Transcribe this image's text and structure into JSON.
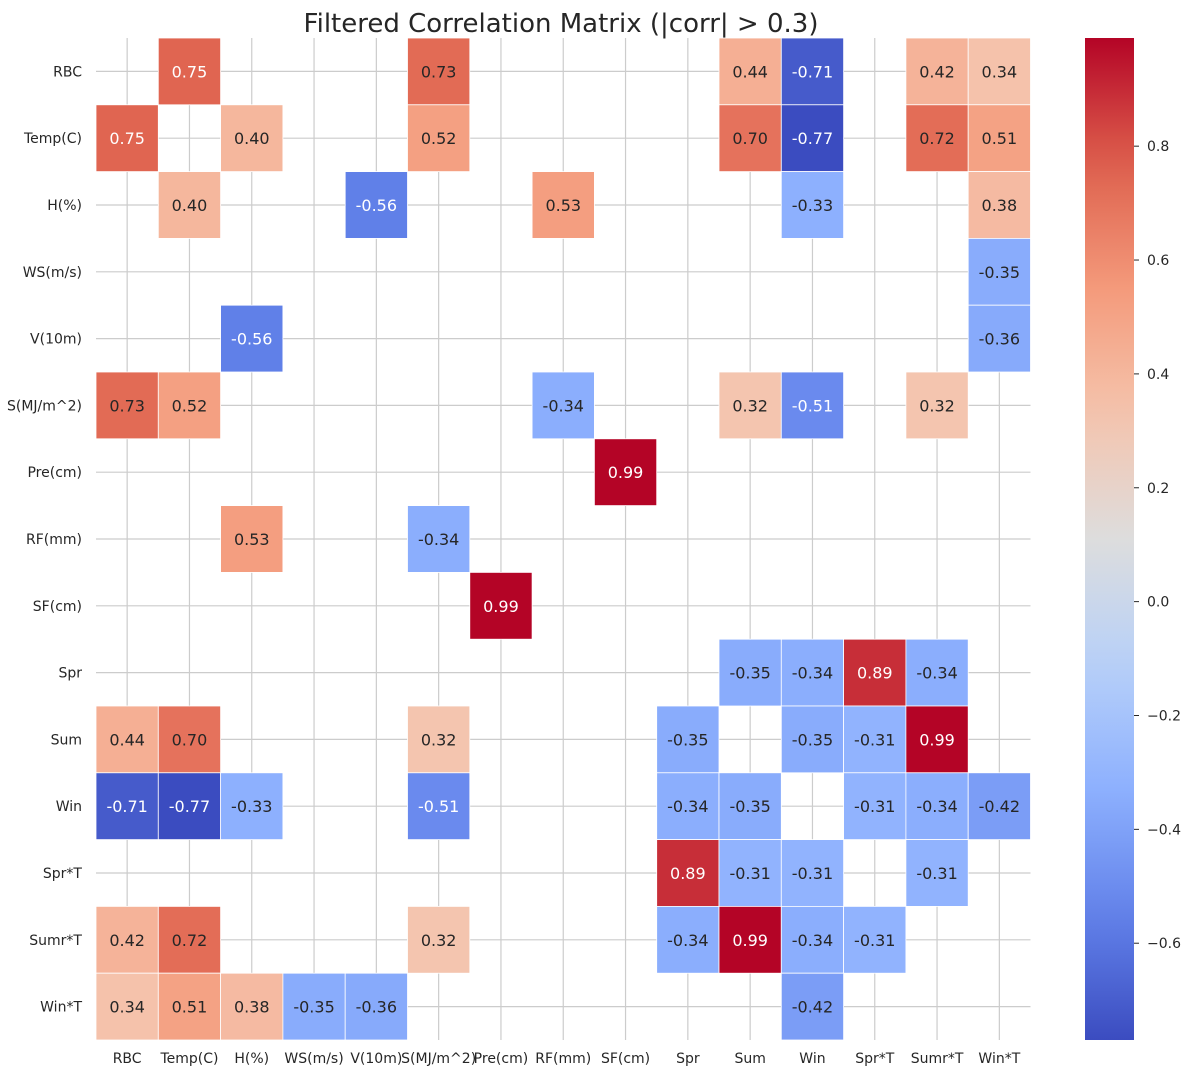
{
  "chart_data": {
    "type": "heatmap",
    "title": "Filtered Correlation Matrix (|corr| > 0.3)",
    "xlabel": "",
    "ylabel": "",
    "rows": [
      "RBC",
      "Temp(C)",
      "H(%)",
      "WS(m/s)",
      "V(10m)",
      "S(MJ/m^2)",
      "Pre(cm)",
      "RF(mm)",
      "SF(cm)",
      "Spr",
      "Sum",
      "Win",
      "Spr*T",
      "Sumr*T",
      "Win*T"
    ],
    "columns": [
      "RBC",
      "Temp(C)",
      "H(%)",
      "WS(m/s)",
      "V(10m)",
      "S(MJ/m^2)",
      "Pre(cm)",
      "RF(mm)",
      "SF(cm)",
      "Spr",
      "Sum",
      "Win",
      "Spr*T",
      "Sumr*T",
      "Win*T"
    ],
    "values": [
      [
        null,
        0.75,
        null,
        null,
        null,
        0.73,
        null,
        null,
        null,
        null,
        0.44,
        -0.71,
        null,
        0.42,
        0.34
      ],
      [
        0.75,
        null,
        0.4,
        null,
        null,
        0.52,
        null,
        null,
        null,
        null,
        0.7,
        -0.77,
        null,
        0.72,
        0.51
      ],
      [
        null,
        0.4,
        null,
        null,
        -0.56,
        null,
        null,
        0.53,
        null,
        null,
        null,
        -0.33,
        null,
        null,
        0.38
      ],
      [
        null,
        null,
        null,
        null,
        null,
        null,
        null,
        null,
        null,
        null,
        null,
        null,
        null,
        null,
        -0.35
      ],
      [
        null,
        null,
        -0.56,
        null,
        null,
        null,
        null,
        null,
        null,
        null,
        null,
        null,
        null,
        null,
        -0.36
      ],
      [
        0.73,
        0.52,
        null,
        null,
        null,
        null,
        null,
        -0.34,
        null,
        null,
        0.32,
        -0.51,
        null,
        0.32,
        null
      ],
      [
        null,
        null,
        null,
        null,
        null,
        null,
        null,
        null,
        0.99,
        null,
        null,
        null,
        null,
        null,
        null
      ],
      [
        null,
        null,
        0.53,
        null,
        null,
        -0.34,
        null,
        null,
        null,
        null,
        null,
        null,
        null,
        null,
        null
      ],
      [
        null,
        null,
        null,
        null,
        null,
        null,
        0.99,
        null,
        null,
        null,
        null,
        null,
        null,
        null,
        null
      ],
      [
        null,
        null,
        null,
        null,
        null,
        null,
        null,
        null,
        null,
        null,
        -0.35,
        -0.34,
        0.89,
        -0.34,
        null
      ],
      [
        0.44,
        0.7,
        null,
        null,
        null,
        0.32,
        null,
        null,
        null,
        -0.35,
        null,
        -0.35,
        -0.31,
        0.99,
        null
      ],
      [
        -0.71,
        -0.77,
        -0.33,
        null,
        null,
        -0.51,
        null,
        null,
        null,
        -0.34,
        -0.35,
        null,
        -0.31,
        -0.34,
        -0.42
      ],
      [
        null,
        null,
        null,
        null,
        null,
        null,
        null,
        null,
        null,
        0.89,
        -0.31,
        -0.31,
        null,
        -0.31,
        null
      ],
      [
        0.42,
        0.72,
        null,
        null,
        null,
        0.32,
        null,
        null,
        null,
        -0.34,
        0.99,
        -0.34,
        -0.31,
        null,
        null
      ],
      [
        0.34,
        0.51,
        0.38,
        -0.35,
        -0.36,
        null,
        null,
        null,
        null,
        null,
        null,
        -0.42,
        null,
        null,
        null
      ]
    ],
    "value_format": "2 decimals",
    "colormap": "coolwarm",
    "color_range": [
      -0.77,
      0.99
    ],
    "colorbar": {
      "ticks": [
        -0.6,
        -0.4,
        -0.2,
        0.0,
        0.2,
        0.4,
        0.6,
        0.8
      ],
      "tick_labels": [
        "−0.6",
        "−0.4",
        "−0.2",
        "0.0",
        "0.2",
        "0.4",
        "0.6",
        "0.8"
      ],
      "placement": "right"
    },
    "grid": true,
    "colors": {
      "low": "#3b4cc0",
      "mid": "#dddddd",
      "high": "#b40426",
      "grid": "#cccccc",
      "text_dark": "#262626",
      "text_light": "#ffffff"
    }
  }
}
